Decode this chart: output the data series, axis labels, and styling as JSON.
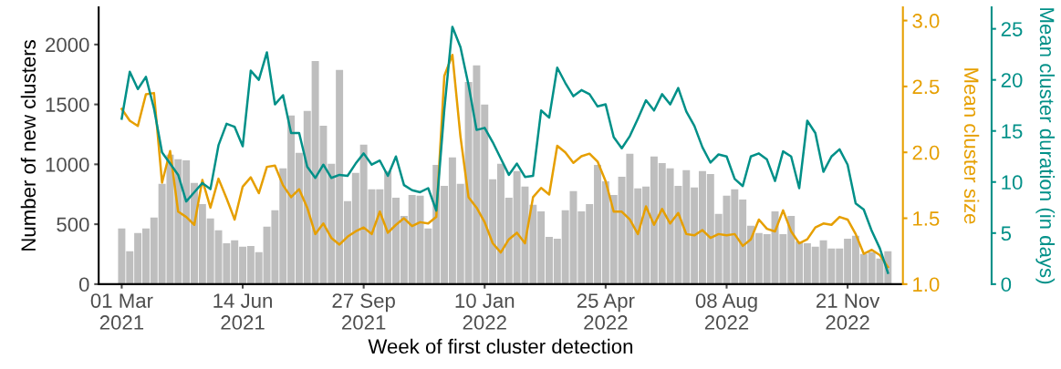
{
  "chart_data": {
    "type": "bar",
    "xlabel": "Week of first cluster detection",
    "ylabel": "Number of new clusters",
    "y2label": "Mean cluster size",
    "y3label": "Mean cluster duration (in days)",
    "x": [
      "2021-03-01",
      "2021-03-08",
      "2021-03-15",
      "2021-03-22",
      "2021-03-29",
      "2021-04-05",
      "2021-04-12",
      "2021-04-19",
      "2021-04-26",
      "2021-05-03",
      "2021-05-10",
      "2021-05-17",
      "2021-05-24",
      "2021-05-31",
      "2021-06-07",
      "2021-06-14",
      "2021-06-21",
      "2021-06-28",
      "2021-07-05",
      "2021-07-12",
      "2021-07-19",
      "2021-07-26",
      "2021-08-02",
      "2021-08-09",
      "2021-08-16",
      "2021-08-23",
      "2021-08-30",
      "2021-09-06",
      "2021-09-13",
      "2021-09-20",
      "2021-09-27",
      "2021-10-04",
      "2021-10-11",
      "2021-10-18",
      "2021-10-25",
      "2021-11-01",
      "2021-11-08",
      "2021-11-15",
      "2021-11-22",
      "2021-11-29",
      "2021-12-06",
      "2021-12-13",
      "2021-12-20",
      "2021-12-27",
      "2022-01-03",
      "2022-01-10",
      "2022-01-17",
      "2022-01-24",
      "2022-01-31",
      "2022-02-07",
      "2022-02-14",
      "2022-02-21",
      "2022-02-28",
      "2022-03-07",
      "2022-03-14",
      "2022-03-21",
      "2022-03-28",
      "2022-04-04",
      "2022-04-11",
      "2022-04-18",
      "2022-04-25",
      "2022-05-02",
      "2022-05-09",
      "2022-05-16",
      "2022-05-23",
      "2022-05-30",
      "2022-06-06",
      "2022-06-13",
      "2022-06-20",
      "2022-06-27",
      "2022-07-04",
      "2022-07-11",
      "2022-07-18",
      "2022-07-25",
      "2022-08-01",
      "2022-08-08",
      "2022-08-15",
      "2022-08-22",
      "2022-08-29",
      "2022-09-05",
      "2022-09-12",
      "2022-09-19",
      "2022-09-26",
      "2022-10-03",
      "2022-10-10",
      "2022-10-17",
      "2022-10-24",
      "2022-10-31",
      "2022-11-07",
      "2022-11-14",
      "2022-11-21",
      "2022-11-28",
      "2022-12-05",
      "2022-12-12",
      "2022-12-19",
      "2022-12-26"
    ],
    "series": [
      {
        "color": "#bebebe",
        "values": [
          464,
          274,
          426,
          464,
          555,
          837,
          1080,
          1042,
          1034,
          844,
          669,
          548,
          449,
          342,
          365,
          312,
          319,
          266,
          479,
          616,
          966,
          1407,
          1095,
          1445,
          1863,
          1323,
          1004,
          1787,
          692,
          928,
          1164,
          791,
          791,
          943,
          722,
          570,
          745,
          738,
          464,
          996,
          821,
          1057,
          837,
          1688,
          1825,
          1498,
          875,
          1004,
          722,
          943,
          814,
          662,
          608,
          395,
          380,
          616,
          776,
          608,
          669,
          996,
          859,
          745,
          897,
          1088,
          799,
          814,
          1065,
          1011,
          966,
          821,
          951,
          806,
          943,
          920,
          586,
          738,
          791,
          707,
          487,
          426,
          418,
          608,
          418,
          570,
          357,
          342,
          312,
          365,
          297,
          297,
          380,
          403,
          251,
          266,
          213,
          274
        ]
      },
      {
        "type": "line",
        "axis": "y2",
        "color": "#e69f00",
        "values": [
          2.33,
          2.24,
          2.2,
          2.44,
          2.45,
          1.77,
          2.01,
          1.55,
          1.51,
          1.45,
          1.79,
          1.58,
          1.8,
          1.65,
          1.49,
          1.74,
          1.81,
          1.69,
          1.89,
          1.9,
          1.75,
          1.66,
          1.72,
          1.58,
          1.38,
          1.46,
          1.35,
          1.3,
          1.36,
          1.4,
          1.43,
          1.38,
          1.55,
          1.39,
          1.45,
          1.5,
          1.44,
          1.47,
          1.46,
          1.51,
          2.58,
          2.74,
          2.12,
          1.66,
          1.58,
          1.47,
          1.31,
          1.24,
          1.34,
          1.39,
          1.31,
          1.66,
          1.73,
          1.68,
          2.05,
          2.0,
          1.92,
          1.97,
          1.99,
          1.93,
          1.78,
          1.55,
          1.55,
          1.49,
          1.38,
          1.59,
          1.45,
          1.57,
          1.46,
          1.54,
          1.38,
          1.37,
          1.41,
          1.35,
          1.38,
          1.37,
          1.38,
          1.29,
          1.34,
          1.49,
          1.42,
          1.4,
          1.56,
          1.4,
          1.31,
          1.34,
          1.43,
          1.46,
          1.45,
          1.51,
          1.49,
          1.38,
          1.23,
          1.26,
          1.22,
          1.13
        ]
      },
      {
        "type": "line",
        "axis": "y3",
        "color": "#009088",
        "values": [
          16.2,
          20.8,
          19.1,
          20.3,
          17.2,
          12.9,
          11.8,
          10.7,
          8.1,
          9.0,
          9.9,
          9.3,
          13.6,
          15.7,
          15.4,
          13.5,
          20.9,
          20.0,
          22.7,
          17.6,
          18.5,
          14.8,
          14.8,
          11.5,
          10.4,
          11.7,
          10.4,
          10.7,
          10.6,
          11.8,
          12.8,
          11.7,
          12.1,
          10.6,
          12.5,
          9.7,
          9.2,
          9.0,
          9.4,
          7.2,
          17.1,
          25.2,
          23.2,
          19.5,
          15.1,
          15.3,
          13.9,
          12.3,
          10.7,
          11.8,
          10.5,
          10.6,
          17.0,
          16.3,
          21.2,
          19.7,
          18.4,
          19.0,
          18.6,
          17.4,
          17.6,
          14.4,
          13.3,
          14.5,
          16.2,
          18.0,
          17.0,
          18.6,
          17.6,
          19.2,
          16.9,
          15.5,
          13.4,
          11.9,
          12.7,
          12.5,
          10.3,
          9.6,
          12.5,
          12.8,
          12.2,
          10.1,
          13.0,
          12.5,
          9.4,
          16.0,
          14.8,
          11.0,
          12.5,
          13.2,
          11.7,
          7.9,
          7.3,
          5.2,
          3.5,
          1.1
        ]
      }
    ],
    "xlim": [
      "2021-02-09",
      "2023-01-08"
    ],
    "xticks": [
      {
        "value": "2021-03-01",
        "label": "01 Mar\n2021"
      },
      {
        "value": "2021-06-14",
        "label": "14 Jun\n2021"
      },
      {
        "value": "2021-09-27",
        "label": "27 Sep\n2021"
      },
      {
        "value": "2022-01-10",
        "label": "10 Jan\n2022"
      },
      {
        "value": "2022-04-25",
        "label": "25 Apr\n2022"
      },
      {
        "value": "2022-08-08",
        "label": "08 Aug\n2022"
      },
      {
        "value": "2022-11-21",
        "label": "21 Nov\n2022"
      }
    ],
    "ylim": [
      0,
      2310
    ],
    "yticks": [
      0,
      500,
      1000,
      1500,
      2000
    ],
    "y2lim": [
      1.0,
      3.1
    ],
    "y2ticks": [
      {
        "value": 1.0,
        "label": "1.0"
      },
      {
        "value": 1.5,
        "label": "1.5"
      },
      {
        "value": 2.0,
        "label": "2.0"
      },
      {
        "value": 2.5,
        "label": "2.5"
      },
      {
        "value": 3.0,
        "label": "3.0"
      }
    ],
    "y3lim": [
      0,
      27.1
    ],
    "y3ticks": [
      0,
      5,
      10,
      15,
      20,
      25
    ],
    "grid": false,
    "legend": false
  }
}
